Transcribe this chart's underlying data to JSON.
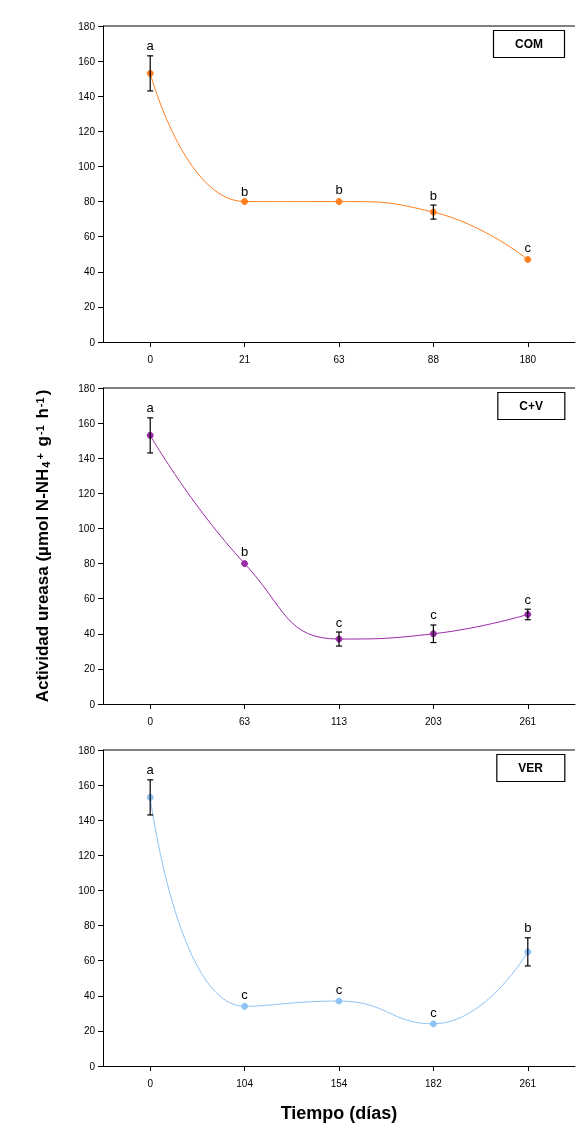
{
  "chart_data": [
    {
      "type": "line",
      "title": "COM",
      "categories": [
        "0",
        "21",
        "63",
        "88",
        "180"
      ],
      "series": [
        {
          "color": "#ff7f1f",
          "values": [
            153,
            80,
            80,
            74,
            47
          ],
          "errors": [
            10,
            null,
            null,
            4,
            null
          ]
        }
      ],
      "ylim": [
        0,
        180
      ],
      "yticks": [
        0,
        20,
        40,
        60,
        80,
        100,
        120,
        140,
        160,
        180
      ],
      "grid": false,
      "marker": "circle",
      "line_style": "solid",
      "annotations": [
        {
          "text": "a",
          "x": "0",
          "y": 165
        },
        {
          "text": "b",
          "x": "21",
          "y": 82
        },
        {
          "text": "b",
          "x": "63",
          "y": 83
        },
        {
          "text": "b",
          "x": "88",
          "y": 80
        },
        {
          "text": "c",
          "x": "180",
          "y": 50
        }
      ]
    },
    {
      "type": "line",
      "title": "C+V",
      "ylabel": "Actividad ureasa (µmol N-NH$_{4}$$^{+}$ g$^{-1}$ h$^{-1}$)",
      "categories": [
        "0",
        "63",
        "113",
        "203",
        "261"
      ],
      "series": [
        {
          "color": "#9b2aa8",
          "values": [
            153,
            80,
            37,
            40,
            51
          ],
          "errors": [
            10,
            null,
            4,
            5,
            3
          ]
        }
      ],
      "ylim": [
        0,
        180
      ],
      "yticks": [
        0,
        20,
        40,
        60,
        80,
        100,
        120,
        140,
        160,
        180
      ],
      "grid": false,
      "marker": "circle",
      "line_style": "solid",
      "annotations": [
        {
          "text": "a",
          "x": "0",
          "y": 165
        },
        {
          "text": "b",
          "x": "63",
          "y": 83
        },
        {
          "text": "c",
          "x": "113",
          "y": 43
        },
        {
          "text": "c",
          "x": "203",
          "y": 47
        },
        {
          "text": "c",
          "x": "261",
          "y": 56
        }
      ]
    },
    {
      "type": "line",
      "title": "VER",
      "xlabel": "Tiempo (días)",
      "categories": [
        "0",
        "104",
        "154",
        "182",
        "261"
      ],
      "series": [
        {
          "color": "#8fc3f5",
          "values": [
            153,
            34,
            37,
            24,
            65
          ],
          "errors": [
            10,
            null,
            null,
            null,
            8
          ]
        }
      ],
      "ylim": [
        0,
        180
      ],
      "yticks": [
        0,
        20,
        40,
        60,
        80,
        100,
        120,
        140,
        160,
        180
      ],
      "grid": false,
      "marker": "circle",
      "line_style": "solid",
      "annotations": [
        {
          "text": "a",
          "x": "0",
          "y": 165
        },
        {
          "text": "c",
          "x": "104",
          "y": 37
        },
        {
          "text": "c",
          "x": "154",
          "y": 40
        },
        {
          "text": "c",
          "x": "182",
          "y": 27
        },
        {
          "text": "b",
          "x": "261",
          "y": 75
        }
      ]
    }
  ]
}
